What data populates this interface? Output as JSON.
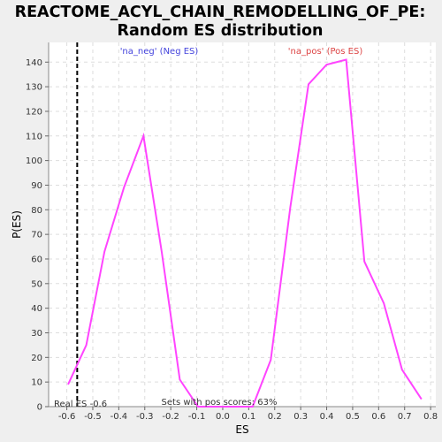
{
  "chart_data": {
    "type": "line",
    "title_line1": "REACTOME_ACYL_CHAIN_REMODELLING_OF_PE:",
    "title_line2": "Random ES distribution",
    "xlabel": "ES",
    "ylabel": "P(ES)",
    "xlim": [
      -0.67,
      0.82
    ],
    "ylim": [
      0,
      148
    ],
    "xticks": [
      "-0.6",
      "-0.5",
      "-0.4",
      "-0.3",
      "-0.2",
      "-0.1",
      "0.0",
      "0.1",
      "0.2",
      "0.3",
      "0.4",
      "0.5",
      "0.6",
      "0.7",
      "0.8"
    ],
    "xtick_values": [
      -0.6,
      -0.5,
      -0.4,
      -0.3,
      -0.2,
      -0.1,
      0.0,
      0.1,
      0.2,
      0.3,
      0.4,
      0.5,
      0.6,
      0.7,
      0.8
    ],
    "yticks": [
      0,
      10,
      20,
      30,
      40,
      50,
      60,
      70,
      80,
      90,
      100,
      110,
      120,
      130,
      140
    ],
    "grid": true,
    "line_color": "#ff44ff",
    "series": [
      {
        "x": [
          -0.595,
          -0.525,
          -0.455,
          -0.38,
          -0.305,
          -0.235,
          -0.165,
          -0.095,
          -0.03,
          0.04,
          0.115,
          0.185,
          0.26,
          0.33,
          0.4,
          0.475,
          0.545,
          0.62,
          0.69,
          0.765
        ],
        "y": [
          9,
          25,
          63,
          89,
          110,
          63,
          11,
          0,
          0,
          0,
          0,
          19,
          81,
          131,
          139,
          141,
          59,
          42,
          15,
          3
        ]
      }
    ],
    "legend": {
      "neg_label": "'na_neg' (Neg ES)",
      "pos_label": "'na_pos' (Pos ES)",
      "neg_color": "#4444dd",
      "pos_color": "#dd4444"
    },
    "real_es": {
      "value": -0.56,
      "label": "Real ES -0.6"
    },
    "pos_scores_label": "Sets with pos scores: 63%"
  }
}
